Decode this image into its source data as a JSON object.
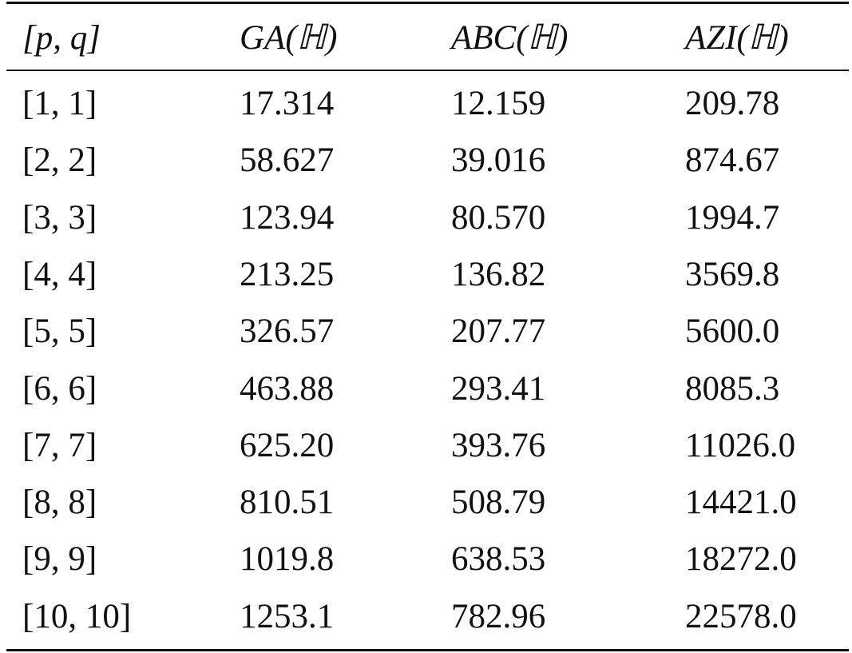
{
  "table": {
    "header": [
      "[p, q]",
      "GA(ℍ)",
      "ABC(ℍ)",
      "AZI(ℍ)"
    ],
    "rows": [
      [
        "[1, 1]",
        "17.314",
        "12.159",
        "209.78"
      ],
      [
        "[2, 2]",
        "58.627",
        "39.016",
        "874.67"
      ],
      [
        "[3, 3]",
        "123.94",
        "80.570",
        "1994.7"
      ],
      [
        "[4, 4]",
        "213.25",
        "136.82",
        "3569.8"
      ],
      [
        "[5, 5]",
        "326.57",
        "207.77",
        "5600.0"
      ],
      [
        "[6, 6]",
        "463.88",
        "293.41",
        "8085.3"
      ],
      [
        "[7, 7]",
        "625.20",
        "393.76",
        "11026.0"
      ],
      [
        "[8, 8]",
        "810.51",
        "508.79",
        "14421.0"
      ],
      [
        "[9, 9]",
        "1019.8",
        "638.53",
        "18272.0"
      ],
      [
        "[10, 10]",
        "1253.1",
        "782.96",
        "22578.0"
      ]
    ]
  }
}
